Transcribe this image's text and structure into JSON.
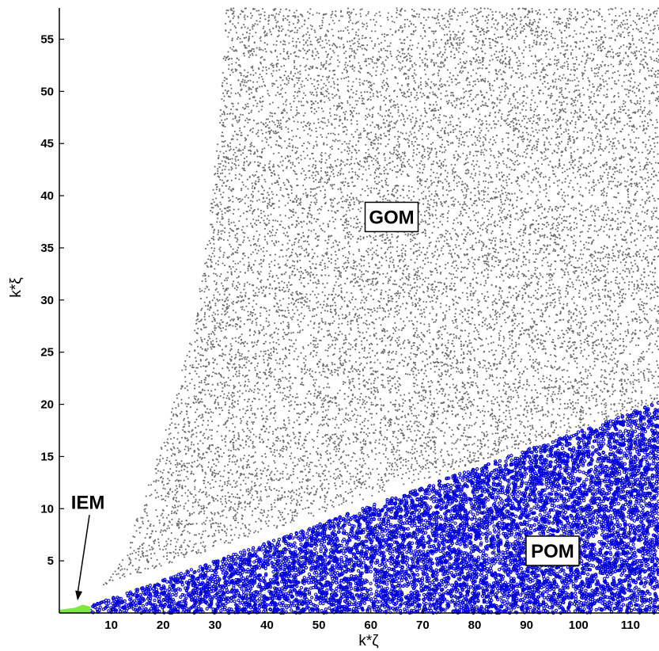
{
  "chart_data": {
    "type": "scatter",
    "title": "",
    "xlabel": "k*ζ",
    "ylabel": "k*ξ",
    "xlim": [
      0,
      115.5
    ],
    "ylim": [
      0,
      58
    ],
    "x_ticks": [
      10,
      20,
      30,
      40,
      50,
      60,
      70,
      80,
      90,
      100,
      110
    ],
    "y_ticks": [
      5,
      10,
      15,
      20,
      25,
      30,
      35,
      40,
      45,
      50,
      55
    ],
    "grid": false,
    "legend": "none",
    "regions": [
      {
        "label": "GOM",
        "color": "#6b6b6b",
        "boundary": {
          "lower_left": [
            [
              8,
              2.6
            ],
            [
              12,
              5
            ],
            [
              17,
              12
            ],
            [
              22,
              20
            ],
            [
              26,
              28
            ],
            [
              29,
              38
            ],
            [
              31,
              48
            ],
            [
              32,
              58
            ]
          ],
          "lower_right": [
            [
              8,
              2.6
            ],
            [
              115.5,
              20.2
            ]
          ]
        },
        "label_position": [
          64,
          38
        ]
      },
      {
        "label": "POM",
        "color": "#0000dd",
        "boundary": [
          [
            6,
            0.7
          ],
          [
            115.5,
            20.2
          ],
          [
            115.5,
            0
          ],
          [
            6,
            0
          ]
        ],
        "label_position": [
          95,
          6
        ]
      },
      {
        "label": "IEM",
        "color": "#7de843",
        "boundary": [
          [
            0,
            0.3
          ],
          [
            3,
            0.5
          ],
          [
            4.5,
            0.8
          ],
          [
            6,
            0.6
          ],
          [
            6,
            0
          ],
          [
            0,
            0
          ]
        ],
        "label_position": [
          5.5,
          10
        ],
        "arrow_to": [
          3.5,
          1.2
        ]
      }
    ]
  }
}
